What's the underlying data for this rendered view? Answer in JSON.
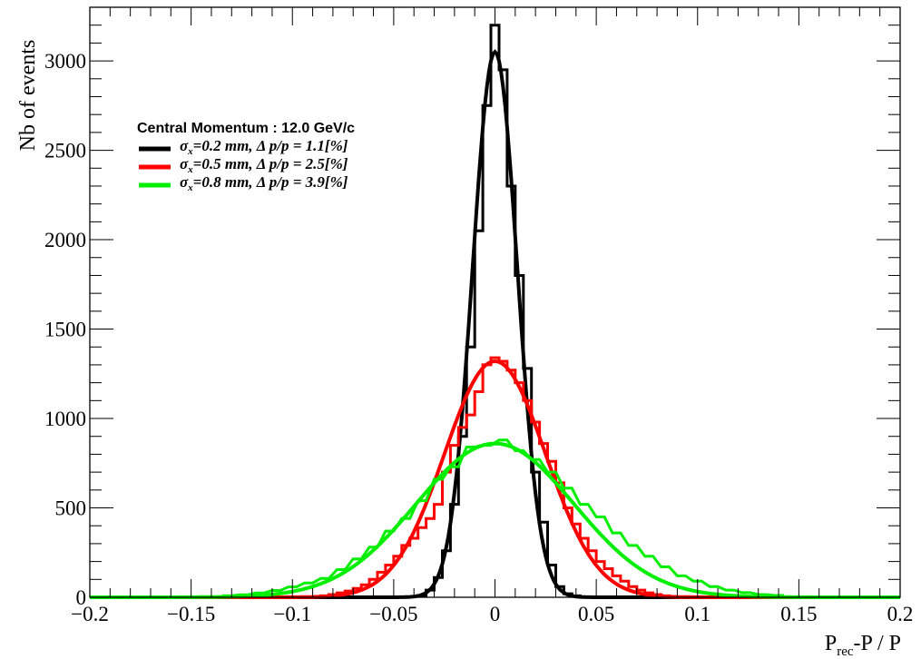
{
  "chart_data": {
    "type": "histogram",
    "xlabel": {
      "main": "P",
      "sub": "rec",
      "rest": "-P / P"
    },
    "ylabel": "Nb of events",
    "xlim": [
      -0.2,
      0.2
    ],
    "ylim": [
      0,
      3300
    ],
    "x_ticks": [
      -0.2,
      -0.15,
      -0.1,
      -0.05,
      0,
      0.05,
      0.1,
      0.15,
      0.2
    ],
    "x_tick_labels": [
      "−0.2",
      "−0.15",
      "−0.1",
      "−0.05",
      "0",
      "0.05",
      "0.1",
      "0.15",
      "0.2"
    ],
    "y_ticks": [
      0,
      500,
      1000,
      1500,
      2000,
      2500,
      3000
    ],
    "y_tick_labels": [
      "0",
      "500",
      "1000",
      "1500",
      "2000",
      "2500",
      "3000"
    ],
    "grid": false,
    "legend": {
      "title": "Central Momentum : 12.0 GeV/c",
      "entries": [
        {
          "sym": "σ",
          "sub": "x",
          "text": "=0.2 mm, Δ p/p = 1.1[%]",
          "color": "#000000"
        },
        {
          "sym": "σ",
          "sub": "x",
          "text": "=0.5 mm, Δ p/p = 2.5[%]",
          "color": "#ff0000"
        },
        {
          "sym": "σ",
          "sub": "x",
          "text": "=0.8 mm, Δ p/p = 3.9[%]",
          "color": "#00ee00"
        }
      ]
    },
    "bin_width": 0.004,
    "series": [
      {
        "color": "#000000",
        "fit": {
          "amplitude": 3050,
          "mean": 0.0,
          "sigma": 0.011
        },
        "hist_bins": [
          [
            -0.036,
            10
          ],
          [
            -0.032,
            40
          ],
          [
            -0.028,
            110
          ],
          [
            -0.024,
            260
          ],
          [
            -0.02,
            520
          ],
          [
            -0.016,
            900
          ],
          [
            -0.012,
            1400
          ],
          [
            -0.008,
            2050
          ],
          [
            -0.004,
            2750
          ],
          [
            0.0,
            3200
          ],
          [
            0.004,
            2950
          ],
          [
            0.008,
            2300
          ],
          [
            0.012,
            1800
          ],
          [
            0.016,
            1280
          ],
          [
            0.02,
            700
          ],
          [
            0.024,
            420
          ],
          [
            0.028,
            180
          ],
          [
            0.032,
            60
          ],
          [
            0.036,
            20
          ],
          [
            0.04,
            8
          ]
        ]
      },
      {
        "color": "#ff0000",
        "fit": {
          "amplitude": 1320,
          "mean": 0.0,
          "sigma": 0.025
        },
        "hist_bins": [
          [
            -0.084,
            8
          ],
          [
            -0.08,
            15
          ],
          [
            -0.076,
            25
          ],
          [
            -0.072,
            35
          ],
          [
            -0.068,
            50
          ],
          [
            -0.064,
            70
          ],
          [
            -0.06,
            100
          ],
          [
            -0.056,
            140
          ],
          [
            -0.052,
            180
          ],
          [
            -0.048,
            230
          ],
          [
            -0.044,
            290
          ],
          [
            -0.04,
            330
          ],
          [
            -0.036,
            390
          ],
          [
            -0.032,
            440
          ],
          [
            -0.028,
            520
          ],
          [
            -0.024,
            700
          ],
          [
            -0.02,
            850
          ],
          [
            -0.016,
            950
          ],
          [
            -0.012,
            1020
          ],
          [
            -0.008,
            1150
          ],
          [
            -0.004,
            1300
          ],
          [
            0.0,
            1340
          ],
          [
            0.004,
            1320
          ],
          [
            0.008,
            1270
          ],
          [
            0.012,
            1200
          ],
          [
            0.016,
            1100
          ],
          [
            0.02,
            980
          ],
          [
            0.024,
            860
          ],
          [
            0.028,
            760
          ],
          [
            0.032,
            640
          ],
          [
            0.036,
            500
          ],
          [
            0.04,
            410
          ],
          [
            0.044,
            330
          ],
          [
            0.048,
            260
          ],
          [
            0.052,
            200
          ],
          [
            0.056,
            160
          ],
          [
            0.06,
            120
          ],
          [
            0.064,
            90
          ],
          [
            0.068,
            60
          ],
          [
            0.072,
            40
          ],
          [
            0.076,
            25
          ],
          [
            0.08,
            15
          ],
          [
            0.084,
            8
          ]
        ]
      },
      {
        "color": "#00ee00",
        "fit": {
          "amplitude": 860,
          "mean": 0.0,
          "sigma": 0.039
        },
        "hist_bins": [
          [
            -0.132,
            8
          ],
          [
            -0.124,
            14
          ],
          [
            -0.116,
            24
          ],
          [
            -0.108,
            38
          ],
          [
            -0.1,
            58
          ],
          [
            -0.092,
            80
          ],
          [
            -0.084,
            105
          ],
          [
            -0.076,
            155
          ],
          [
            -0.068,
            215
          ],
          [
            -0.06,
            280
          ],
          [
            -0.052,
            370
          ],
          [
            -0.044,
            440
          ],
          [
            -0.036,
            540
          ],
          [
            -0.028,
            660
          ],
          [
            -0.02,
            730
          ],
          [
            -0.012,
            840
          ],
          [
            -0.004,
            850
          ],
          [
            0.004,
            880
          ],
          [
            0.012,
            820
          ],
          [
            0.02,
            770
          ],
          [
            0.028,
            700
          ],
          [
            0.036,
            610
          ],
          [
            0.044,
            520
          ],
          [
            0.052,
            450
          ],
          [
            0.06,
            360
          ],
          [
            0.068,
            290
          ],
          [
            0.076,
            230
          ],
          [
            0.084,
            170
          ],
          [
            0.092,
            120
          ],
          [
            0.1,
            90
          ],
          [
            0.108,
            60
          ],
          [
            0.116,
            40
          ],
          [
            0.124,
            26
          ],
          [
            0.132,
            15
          ],
          [
            0.14,
            10
          ]
        ]
      }
    ]
  }
}
